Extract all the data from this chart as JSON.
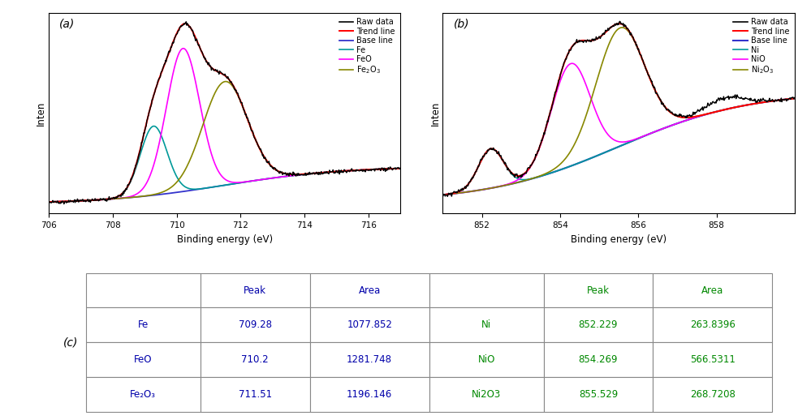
{
  "panel_a": {
    "xlabel": "Binding energy (eV)",
    "ylabel": "Inten",
    "xlim": [
      706,
      717
    ],
    "xticks": [
      706,
      708,
      710,
      712,
      714,
      716
    ],
    "label": "(a)",
    "colors": {
      "raw": "#000000",
      "trend": "#ff0000",
      "baseline": "#3333cc",
      "Fe": "#009999",
      "FeO": "#ff00ff",
      "Fe2O3": "#888800"
    }
  },
  "panel_b": {
    "xlabel": "Binding energy (eV)",
    "ylabel": "Inten",
    "xlim": [
      851,
      860
    ],
    "xticks": [
      852,
      854,
      856,
      858
    ],
    "label": "(b)",
    "colors": {
      "raw": "#000000",
      "trend": "#ff0000",
      "baseline": "#3333cc",
      "Ni": "#009999",
      "NiO": "#ff00ff",
      "Ni2O3": "#888800"
    }
  },
  "panel_c": {
    "label": "(c)",
    "table_data": [
      [
        "",
        "Peak",
        "Area",
        "",
        "Peak",
        "Area"
      ],
      [
        "Fe",
        "709.28",
        "1077.852",
        "Ni",
        "852.229",
        "263.8396"
      ],
      [
        "FeO",
        "710.2",
        "1281.748",
        "NiO",
        "854.269",
        "566.5311"
      ],
      [
        "Fe₂O₃",
        "711.51",
        "1196.146",
        "Ni2O3",
        "855.529",
        "268.7208"
      ]
    ],
    "col_widths": [
      0.115,
      0.11,
      0.12,
      0.115,
      0.11,
      0.12
    ],
    "text_color_left": "#0000aa",
    "text_color_right": "#008800"
  }
}
